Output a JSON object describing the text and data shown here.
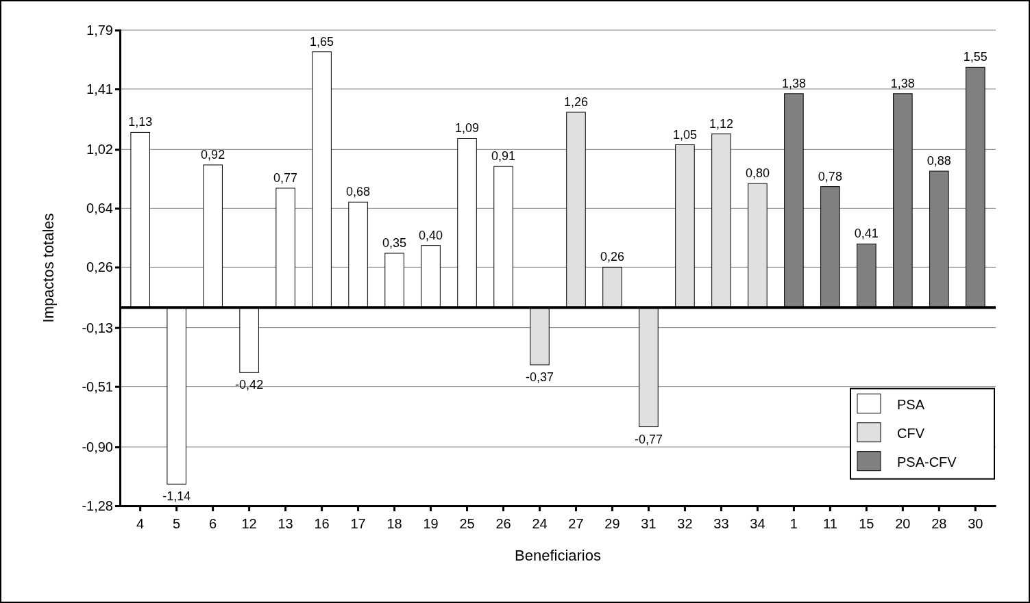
{
  "chart_data": {
    "type": "bar",
    "xlabel": "Beneficiarios",
    "ylabel": "Impactos totales",
    "categories": [
      "4",
      "5",
      "6",
      "12",
      "13",
      "16",
      "17",
      "18",
      "19",
      "25",
      "26",
      "24",
      "27",
      "29",
      "31",
      "32",
      "33",
      "34",
      "1",
      "11",
      "15",
      "20",
      "28",
      "30"
    ],
    "series": [
      {
        "name": "PSA",
        "color": "#ffffff",
        "values": [
          1.13,
          -1.14,
          0.92,
          -0.42,
          0.77,
          1.65,
          0.68,
          0.35,
          0.4,
          1.09,
          0.91,
          null,
          null,
          null,
          null,
          null,
          null,
          null,
          null,
          null,
          null,
          null,
          null,
          null
        ],
        "value_labels": [
          "1,13",
          "-1,14",
          "0,92",
          "-0,42",
          "0,77",
          "1,65",
          "0,68",
          "0,35",
          "0,40",
          "1,09",
          "0,91",
          null,
          null,
          null,
          null,
          null,
          null,
          null,
          null,
          null,
          null,
          null,
          null,
          null
        ]
      },
      {
        "name": "CFV",
        "color": "#e0e0e0",
        "values": [
          null,
          null,
          null,
          null,
          null,
          null,
          null,
          null,
          null,
          null,
          null,
          -0.37,
          1.26,
          0.26,
          -0.77,
          1.05,
          1.12,
          0.8,
          null,
          null,
          null,
          null,
          null,
          null
        ],
        "value_labels": [
          null,
          null,
          null,
          null,
          null,
          null,
          null,
          null,
          null,
          null,
          null,
          "-0,37",
          "1,26",
          "0,26",
          "-0,77",
          "1,05",
          "1,12",
          "0,80",
          null,
          null,
          null,
          null,
          null,
          null
        ]
      },
      {
        "name": "PSA-CFV",
        "color": "#808080",
        "values": [
          null,
          null,
          null,
          null,
          null,
          null,
          null,
          null,
          null,
          null,
          null,
          null,
          null,
          null,
          null,
          null,
          null,
          null,
          1.38,
          0.78,
          0.41,
          1.38,
          0.88,
          1.55
        ],
        "value_labels": [
          null,
          null,
          null,
          null,
          null,
          null,
          null,
          null,
          null,
          null,
          null,
          null,
          null,
          null,
          null,
          null,
          null,
          null,
          "1,38",
          "0,78",
          "0,41",
          "1,38",
          "0,88",
          "1,55"
        ]
      }
    ],
    "ylim": [
      -1.28,
      1.79
    ],
    "yticks": [
      {
        "value": 1.79,
        "label": "1,79"
      },
      {
        "value": 1.41,
        "label": "1,41"
      },
      {
        "value": 1.02,
        "label": "1,02"
      },
      {
        "value": 0.64,
        "label": "0,64"
      },
      {
        "value": 0.26,
        "label": "0,26"
      },
      {
        "value": -0.13,
        "label": "-0,13"
      },
      {
        "value": -0.51,
        "label": "-0,51"
      },
      {
        "value": -0.9,
        "label": "-0,90"
      },
      {
        "value": -1.28,
        "label": "-1,28"
      }
    ],
    "grid": "y",
    "legend": "bottom right"
  }
}
